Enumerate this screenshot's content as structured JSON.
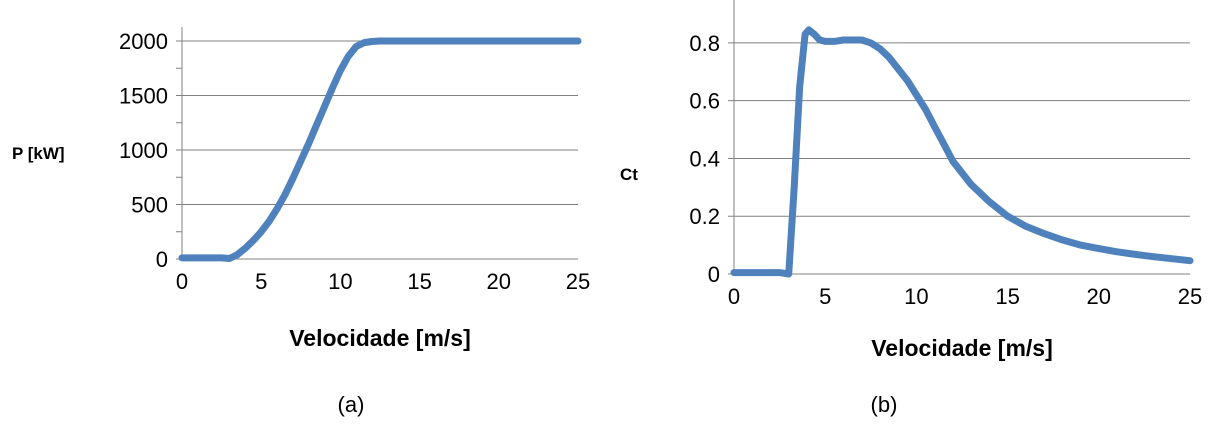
{
  "charts": [
    {
      "caption": "(a)",
      "chart_data": {
        "type": "line",
        "title": "",
        "xlabel": "Velocidade [m/s]",
        "ylabel": "P [kW]",
        "xlim": [
          0,
          25
        ],
        "ylim": [
          0,
          2000
        ],
        "xticks": [
          0,
          5,
          10,
          15,
          20,
          25
        ],
        "yticks": [
          0,
          500,
          1000,
          1500,
          2000
        ],
        "minor_yticks": [
          250,
          750,
          1250,
          1750
        ],
        "grid": true,
        "legend": "none",
        "series": [
          {
            "color": "#4F81BD",
            "x": [
              0,
              1,
              2,
              2.5,
              3,
              3.5,
              4,
              4.5,
              5,
              5.5,
              6,
              6.5,
              7,
              7.5,
              8,
              8.5,
              9,
              9.5,
              10,
              10.5,
              11,
              11.5,
              12,
              12.5,
              13,
              14,
              15,
              17,
              20,
              25
            ],
            "y": [
              10,
              10,
              10,
              10,
              5,
              40,
              100,
              170,
              250,
              345,
              460,
              590,
              740,
              900,
              1060,
              1230,
              1400,
              1570,
              1730,
              1860,
              1950,
              1985,
              1995,
              2000,
              2000,
              2000,
              2000,
              2000,
              2000,
              2000
            ]
          }
        ]
      }
    },
    {
      "caption": "(b)",
      "chart_data": {
        "type": "line",
        "title": "",
        "xlabel": "Velocidade [m/s]",
        "ylabel": "Ct",
        "xlim": [
          0,
          25
        ],
        "ylim": [
          0,
          0.9
        ],
        "xticks": [
          0,
          5,
          10,
          15,
          20,
          25
        ],
        "yticks": [
          0,
          0.2,
          0.4,
          0.6,
          0.8
        ],
        "ytick_labels": [
          "0",
          "0.2",
          "0.4",
          "0.6",
          "0.8"
        ],
        "grid": true,
        "legend": "none",
        "series": [
          {
            "color": "#4F81BD",
            "x": [
              0,
              1,
              2,
              2.5,
              3,
              3.3,
              3.6,
              3.9,
              4.1,
              4.4,
              4.7,
              5,
              5.5,
              6,
              6.5,
              7,
              7.5,
              8,
              8.5,
              9,
              9.5,
              10,
              10.5,
              11,
              11.5,
              12,
              13,
              14,
              15,
              16,
              17,
              18,
              19,
              20,
              21,
              22,
              23,
              24,
              25
            ],
            "y": [
              0.005,
              0.005,
              0.005,
              0.005,
              0.0,
              0.3,
              0.65,
              0.83,
              0.845,
              0.83,
              0.81,
              0.805,
              0.805,
              0.81,
              0.81,
              0.81,
              0.8,
              0.78,
              0.75,
              0.71,
              0.67,
              0.62,
              0.57,
              0.51,
              0.45,
              0.39,
              0.31,
              0.25,
              0.2,
              0.165,
              0.14,
              0.118,
              0.1,
              0.088,
              0.077,
              0.068,
              0.06,
              0.053,
              0.046
            ]
          }
        ]
      }
    }
  ]
}
